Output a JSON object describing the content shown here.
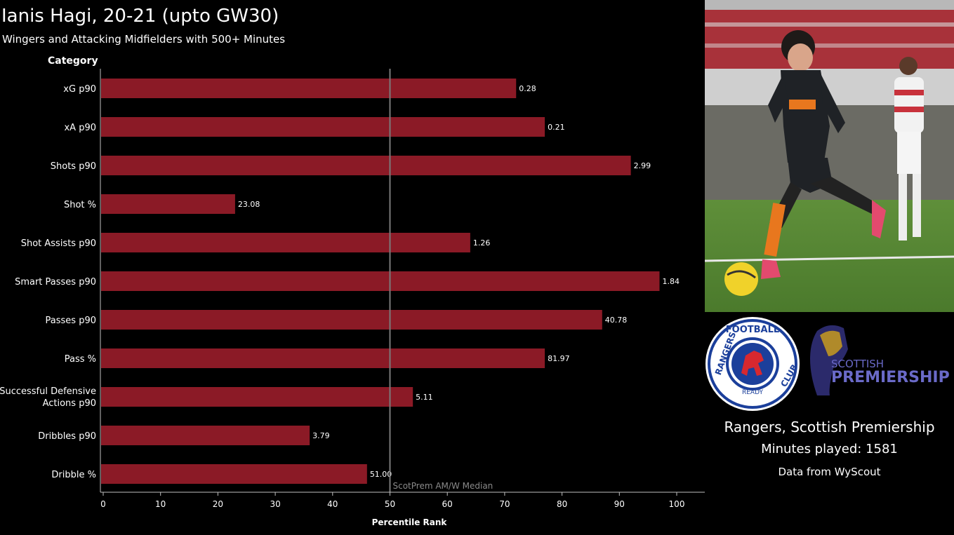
{
  "header": {
    "title": "Ianis Hagi, 20-21 (upto GW30)",
    "subtitle": "Wingers and Attacking Midfielders with 500+ Minutes"
  },
  "chart_data": {
    "type": "bar",
    "orientation": "horizontal",
    "ylabel": "Category",
    "xlabel": "Percentile Rank",
    "xlim": [
      0,
      105
    ],
    "xticks": [
      0,
      10,
      20,
      30,
      40,
      50,
      60,
      70,
      80,
      90,
      100
    ],
    "categories": [
      "xG p90",
      "xA p90",
      "Shots p90",
      "Shot %",
      "Shot Assists p90",
      "Smart Passes p90",
      "Passes p90",
      "Pass %",
      "Successful Defensive Actions p90",
      "Dribbles p90",
      "Dribble %"
    ],
    "category_lines": [
      [
        "xG p90"
      ],
      [
        "xA p90"
      ],
      [
        "Shots p90"
      ],
      [
        "Shot %"
      ],
      [
        "Shot Assists p90"
      ],
      [
        "Smart Passes p90"
      ],
      [
        "Passes p90"
      ],
      [
        "Pass %"
      ],
      [
        "Successful Defensive",
        "Actions p90"
      ],
      [
        "Dribbles p90"
      ],
      [
        "Dribble %"
      ]
    ],
    "percentiles": [
      72,
      77,
      92,
      23,
      64,
      97,
      87,
      77,
      54,
      36,
      46
    ],
    "labels": [
      "0.28",
      "0.21",
      "2.99",
      "23.08",
      "1.26",
      "1.84",
      "40.78",
      "81.97",
      "5.11",
      "3.79",
      "51.00"
    ],
    "reference_line": {
      "value": 50,
      "label": "ScotPrem AM/W Median"
    },
    "bar_color": "#8b1a26",
    "grid": false
  },
  "sidebar": {
    "photo_alt": "player-photo",
    "club_crest_text": {
      "top": "FOOTBALL",
      "left": "RANGERS",
      "right": "CLUB",
      "bottom": "READY"
    },
    "league_logo_text": {
      "line1": "SCOTTISH",
      "line2": "PREMIERSHIP"
    },
    "team_league": "Rangers, Scottish Premiership",
    "minutes": "Minutes played: 1581",
    "source": "Data from WyScout"
  },
  "colors": {
    "background": "#000000",
    "bar": "#8b1a26",
    "median_line": "#7a7a7a",
    "axis": "#bfbfbf",
    "crest_blue": "#1b3f9b",
    "league_navy": "#2b2a6b"
  }
}
